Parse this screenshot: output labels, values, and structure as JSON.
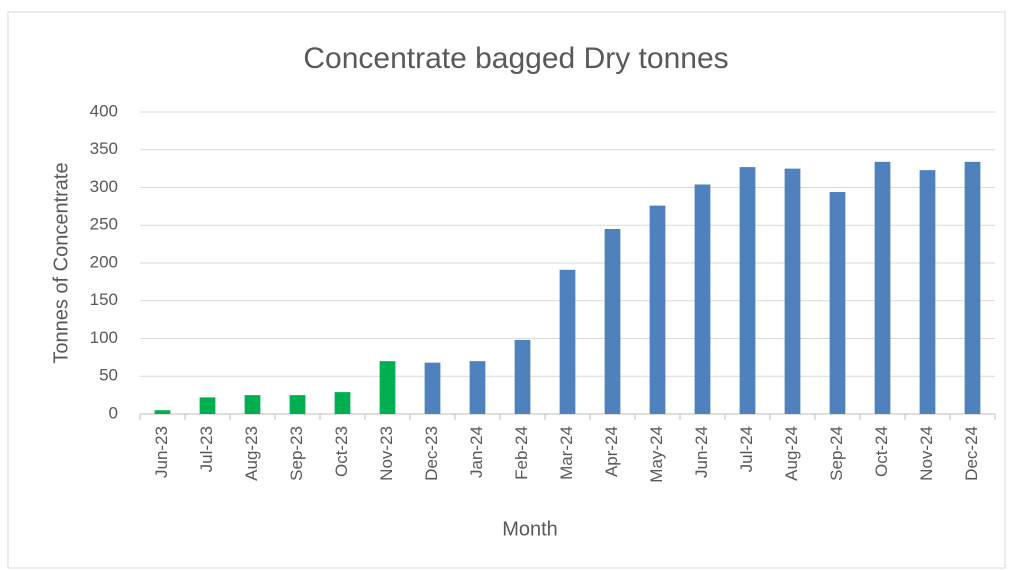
{
  "chart_data": {
    "type": "bar",
    "title": "Concentrate bagged Dry tonnes",
    "x_label": "Month",
    "y_label": "Tonnes of Concentrate",
    "categories": [
      "Jun-23",
      "Jul-23",
      "Aug-23",
      "Sep-23",
      "Oct-23",
      "Nov-23",
      "Dec-23",
      "Jan-24",
      "Feb-24",
      "Mar-24",
      "Apr-24",
      "May-24",
      "Jun-24",
      "Jul-24",
      "Aug-24",
      "Sep-24",
      "Oct-24",
      "Nov-24",
      "Dec-24"
    ],
    "values": [
      5,
      22,
      25,
      25,
      29,
      70,
      68,
      70,
      98,
      191,
      245,
      276,
      304,
      327,
      325,
      294,
      334,
      323,
      334
    ],
    "colors": [
      "#00b050",
      "#00b050",
      "#00b050",
      "#00b050",
      "#00b050",
      "#00b050",
      "#4f81bd",
      "#4f81bd",
      "#4f81bd",
      "#4f81bd",
      "#4f81bd",
      "#4f81bd",
      "#4f81bd",
      "#4f81bd",
      "#4f81bd",
      "#4f81bd",
      "#4f81bd",
      "#4f81bd",
      "#4f81bd"
    ],
    "ylim": [
      0,
      400
    ],
    "yticks": [
      0,
      50,
      100,
      150,
      200,
      250,
      300,
      350,
      400
    ],
    "grid": true
  }
}
